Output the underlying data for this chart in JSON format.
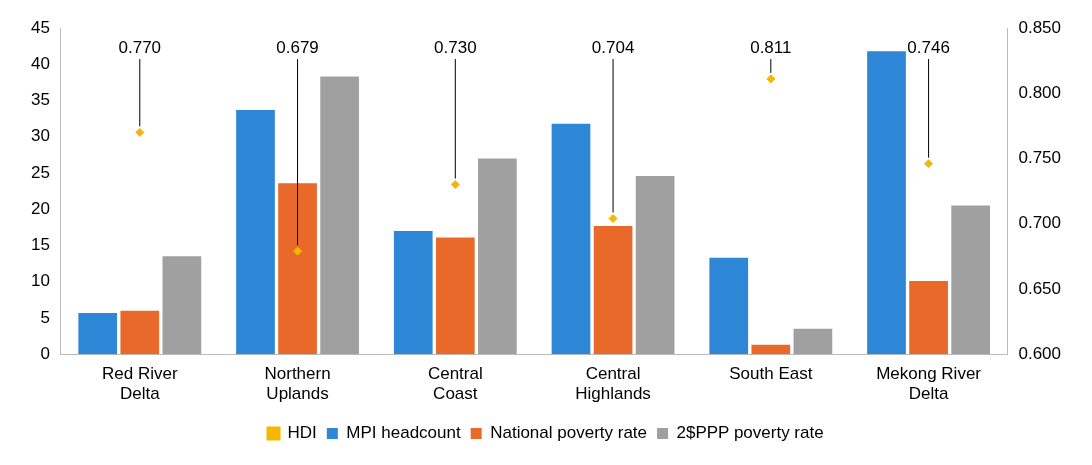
{
  "chart_data": {
    "type": "bar",
    "categories": [
      "Red River Delta",
      "Northern Uplands",
      "Central Coast",
      "Central Highlands",
      "South East",
      "Mekong River Delta"
    ],
    "series": [
      {
        "name": "MPI headcount",
        "color": "#2e86d6",
        "values": [
          5.7,
          33.7,
          17.0,
          31.8,
          13.3,
          41.8
        ]
      },
      {
        "name": "National poverty rate",
        "color": "#e8692a",
        "values": [
          6.0,
          23.6,
          16.1,
          17.7,
          1.3,
          10.1
        ]
      },
      {
        "name": "2$PPP poverty rate",
        "color": "#a0a0a0",
        "values": [
          13.5,
          38.3,
          27.0,
          24.6,
          3.5,
          20.5
        ]
      },
      {
        "name": "HDI",
        "type": "scatter",
        "axis": "y2",
        "marker": "diamond",
        "color": "#f5b800",
        "values": [
          0.77,
          0.679,
          0.73,
          0.704,
          0.811,
          0.746
        ],
        "value_labels": [
          "0.770",
          "0.679",
          "0.730",
          "0.704",
          "0.811",
          "0.746"
        ]
      }
    ],
    "ylim": [
      0,
      45
    ],
    "yticks": [
      0,
      5,
      10,
      15,
      20,
      25,
      30,
      35,
      40,
      45
    ],
    "y2lim": [
      0.6,
      0.85
    ],
    "y2ticks": [
      {
        "value": 0.6,
        "label": "0.600"
      },
      {
        "value": 0.65,
        "label": "0.650"
      },
      {
        "value": 0.7,
        "label": "0.700"
      },
      {
        "value": 0.75,
        "label": "0.750"
      },
      {
        "value": 0.8,
        "label": "0.800"
      },
      {
        "value": 0.85,
        "label": "0.850"
      }
    ],
    "legend": "bottom"
  }
}
